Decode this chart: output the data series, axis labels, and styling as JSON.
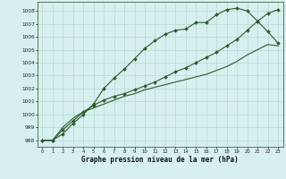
{
  "title": "Graphe pression niveau de la mer (hPa)",
  "bg_color": "#d6f0f0",
  "grid_color": "#b8d8d0",
  "line_color": "#2d5a2d",
  "xlim_min": -0.5,
  "xlim_max": 23.5,
  "ylim_min": 997.5,
  "ylim_max": 1008.7,
  "yticks": [
    998,
    999,
    1000,
    1001,
    1002,
    1003,
    1004,
    1005,
    1006,
    1007,
    1008
  ],
  "xticks": [
    0,
    1,
    2,
    3,
    4,
    5,
    6,
    7,
    8,
    9,
    10,
    11,
    12,
    13,
    14,
    15,
    16,
    17,
    18,
    19,
    20,
    21,
    22,
    23
  ],
  "line1_x": [
    0,
    1,
    2,
    3,
    4,
    5,
    6,
    7,
    8,
    9,
    10,
    11,
    12,
    13,
    14,
    15,
    16,
    17,
    18,
    19,
    20,
    21,
    22,
    23
  ],
  "line1_y": [
    998.0,
    998.0,
    998.5,
    999.3,
    1000.0,
    1000.8,
    1002.0,
    1002.8,
    1003.5,
    1004.3,
    1005.1,
    1005.7,
    1006.2,
    1006.5,
    1006.6,
    1007.1,
    1007.1,
    1007.7,
    1008.1,
    1008.2,
    1008.0,
    1007.2,
    1006.4,
    1005.5
  ],
  "line2_x": [
    0,
    1,
    2,
    3,
    4,
    5,
    6,
    7,
    8,
    9,
    10,
    11,
    12,
    13,
    14,
    15,
    16,
    17,
    18,
    19,
    20,
    21,
    22,
    23
  ],
  "line2_y": [
    998.0,
    998.0,
    998.8,
    999.5,
    1000.2,
    1000.7,
    1001.1,
    1001.4,
    1001.6,
    1001.9,
    1002.2,
    1002.5,
    1002.9,
    1003.3,
    1003.6,
    1004.0,
    1004.4,
    1004.8,
    1005.3,
    1005.8,
    1006.5,
    1007.2,
    1007.8,
    1008.1
  ],
  "line3_x": [
    0,
    1,
    2,
    3,
    4,
    5,
    6,
    7,
    8,
    9,
    10,
    11,
    12,
    13,
    14,
    15,
    16,
    17,
    18,
    19,
    20,
    21,
    22,
    23
  ],
  "line3_y": [
    998.0,
    998.0,
    999.0,
    999.7,
    1000.2,
    1000.5,
    1000.8,
    1001.1,
    1001.4,
    1001.6,
    1001.9,
    1002.1,
    1002.3,
    1002.5,
    1002.7,
    1002.9,
    1003.1,
    1003.4,
    1003.7,
    1004.1,
    1004.6,
    1005.0,
    1005.4,
    1005.3
  ]
}
